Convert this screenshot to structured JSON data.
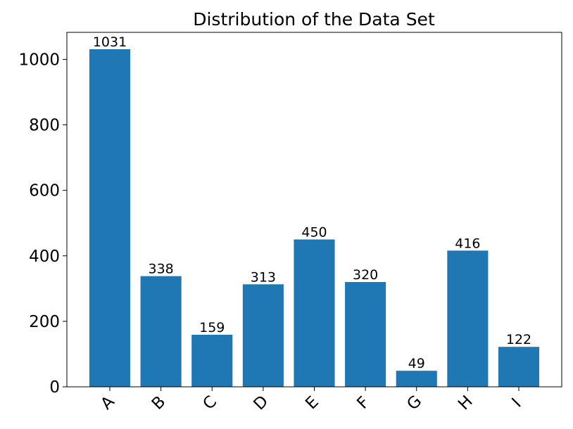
{
  "chart_data": {
    "type": "bar",
    "title": "Distribution of the Data Set",
    "categories": [
      "A",
      "B",
      "C",
      "D",
      "E",
      "F",
      "G",
      "H",
      "I"
    ],
    "values": [
      1031,
      338,
      159,
      313,
      450,
      320,
      49,
      416,
      122
    ],
    "color": "#1f77b4",
    "ylim": [
      0,
      1082.55
    ],
    "yticks": [
      0,
      200,
      400,
      600,
      800,
      1000
    ],
    "grid": false
  }
}
